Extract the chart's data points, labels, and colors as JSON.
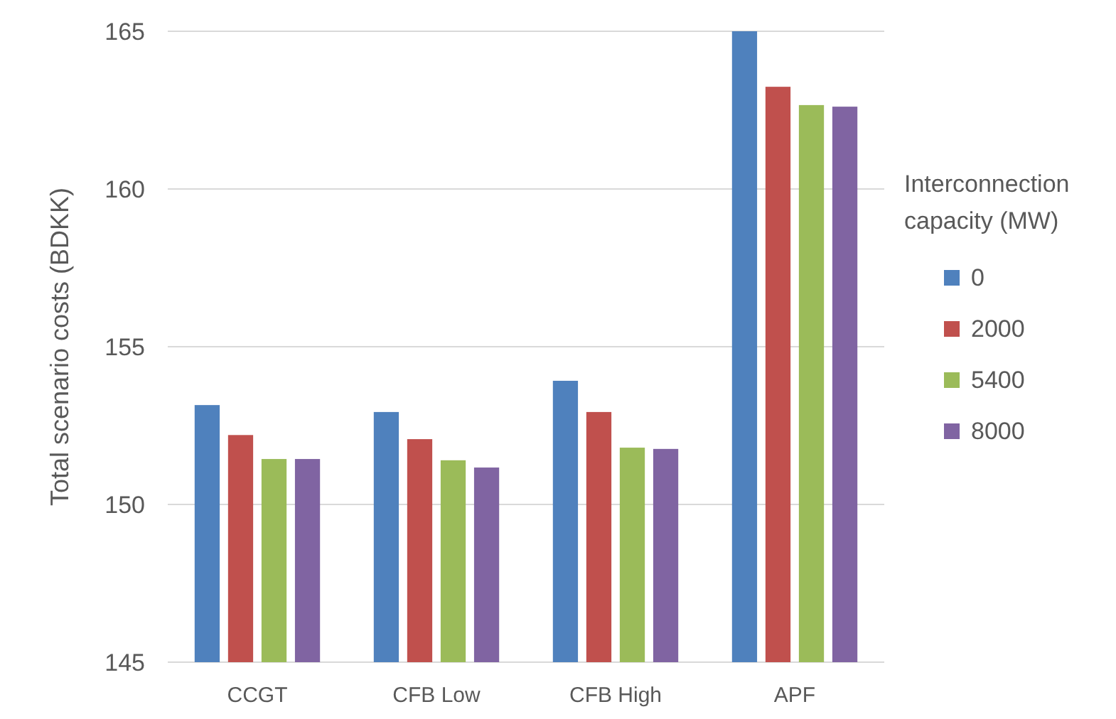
{
  "chart_data": {
    "type": "bar",
    "ylabel": "Total scenario costs (BDKK)",
    "legend_title": "Interconnection capacity (MW)",
    "categories": [
      "CCGT",
      "CFB Low",
      "CFB High",
      "APF"
    ],
    "series": [
      {
        "name": "0",
        "color": "#4f81bd",
        "values": [
          153.15,
          152.93,
          153.92,
          165
        ]
      },
      {
        "name": "2000",
        "color": "#c0504d",
        "values": [
          152.2,
          152.07,
          152.93,
          163.24
        ]
      },
      {
        "name": "5400",
        "color": "#9bbb59",
        "values": [
          151.44,
          151.4,
          151.8,
          162.66
        ]
      },
      {
        "name": "8000",
        "color": "#8064a2",
        "values": [
          151.44,
          151.17,
          151.76,
          162.61
        ]
      }
    ],
    "ylim": [
      145,
      165
    ],
    "yticks": [
      145,
      150,
      155,
      160,
      165
    ],
    "grid": "y",
    "legend": "right"
  }
}
